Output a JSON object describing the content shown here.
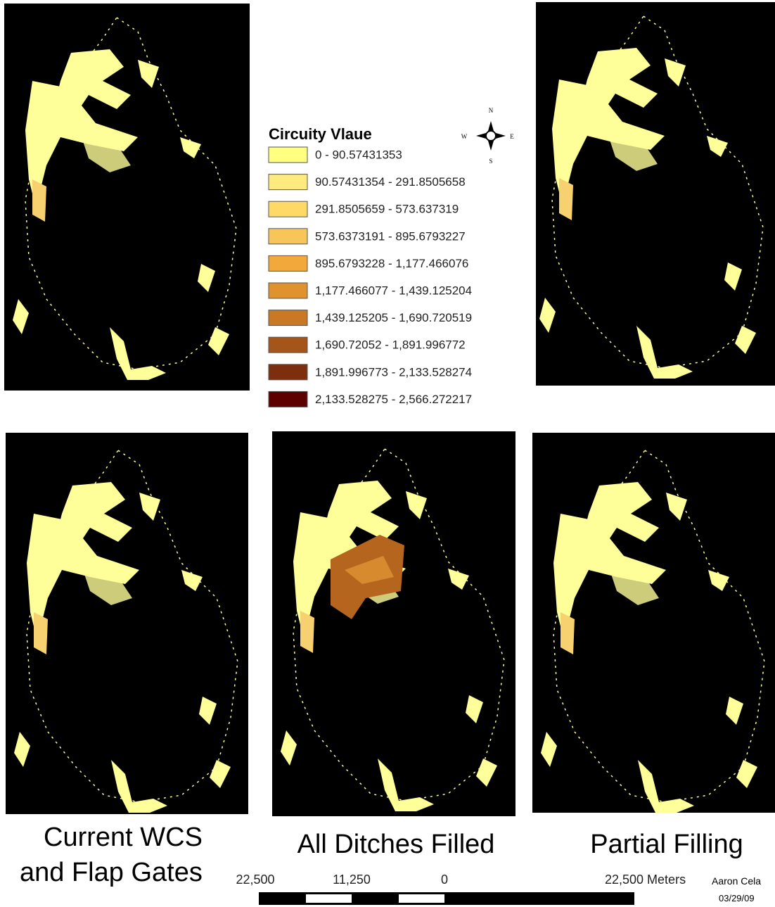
{
  "legend": {
    "title": "Circuity Vlaue",
    "items": [
      {
        "label": "0 - 90.57431353",
        "color": "#ffff80"
      },
      {
        "label": "90.57431354 - 291.8505658",
        "color": "#ffea80"
      },
      {
        "label": "291.8505659 - 573.637319",
        "color": "#ffd966"
      },
      {
        "label": "573.6373191 - 895.6793227",
        "color": "#f7c55a"
      },
      {
        "label": "895.6793228 - 1,177.466076",
        "color": "#f2a83a"
      },
      {
        "label": "1,177.466077 - 1,439.125204",
        "color": "#e0922e"
      },
      {
        "label": "1,439.125205 - 1,690.720519",
        "color": "#c97824"
      },
      {
        "label": "1,690.72052 - 1,891.996772",
        "color": "#a5541a"
      },
      {
        "label": "1,891.996773 - 2,133.528274",
        "color": "#7d2e0c"
      },
      {
        "label": "2,133.528275 - 2,566.272217",
        "color": "#5e0000"
      }
    ]
  },
  "compass": {
    "n": "N",
    "s": "S",
    "e": "E",
    "w": "W"
  },
  "captions": {
    "left_line1": "Current WCS",
    "left_line2": "and Flap Gates",
    "middle": "All Ditches Filled",
    "right": "Partial Filling"
  },
  "scale_bar": {
    "labels": [
      "22,500",
      "11,250",
      "0",
      "22,500 Meters"
    ]
  },
  "credit": {
    "author": "Aaron Cela",
    "date": "03/29/09"
  }
}
